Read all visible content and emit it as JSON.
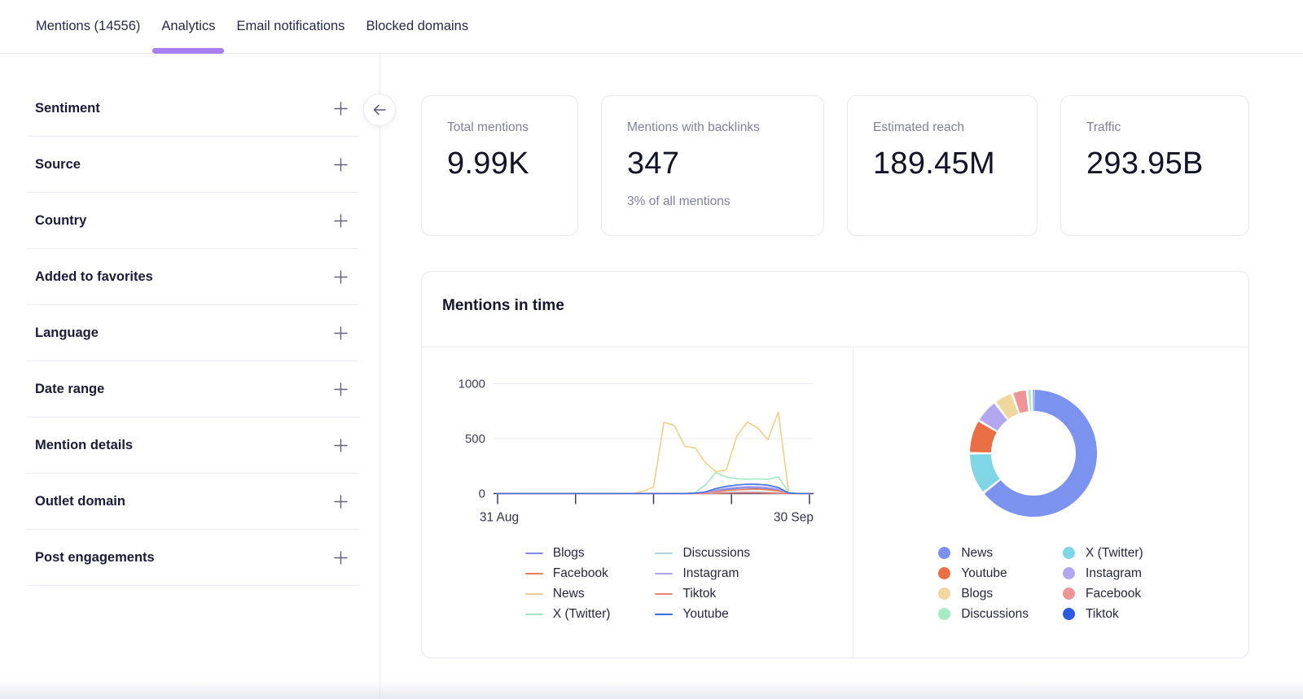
{
  "tabs": {
    "items": [
      {
        "label": "Mentions (14556)",
        "active": false
      },
      {
        "label": "Analytics",
        "active": true
      },
      {
        "label": "Email notifications",
        "active": false
      },
      {
        "label": "Blocked domains",
        "active": false
      }
    ]
  },
  "sidebar": {
    "items": [
      {
        "label": "Sentiment"
      },
      {
        "label": "Source"
      },
      {
        "label": "Country"
      },
      {
        "label": "Added to favorites"
      },
      {
        "label": "Language"
      },
      {
        "label": "Date range"
      },
      {
        "label": "Mention details"
      },
      {
        "label": "Outlet domain"
      },
      {
        "label": "Post engagements"
      }
    ],
    "expand_icon": "plus-icon"
  },
  "collapse_button": {
    "icon": "arrow-left-icon"
  },
  "stats": {
    "cards": [
      {
        "label": "Total mentions",
        "value": "9.99K",
        "sublabel": ""
      },
      {
        "label": "Mentions with backlinks",
        "value": "347",
        "sublabel": "3% of all mentions"
      },
      {
        "label": "Estimated reach",
        "value": "189.45M",
        "sublabel": ""
      },
      {
        "label": "Traffic",
        "value": "293.95B",
        "sublabel": ""
      }
    ]
  },
  "mentions_panel": {
    "title": "Mentions in time"
  },
  "colors": {
    "accent_purple": "#a77ef2",
    "divider": "#ececf4",
    "card_border": "#e7e7f0",
    "text_dark": "#15152d",
    "text_gray": "#80809b",
    "axis_text": "#3e3e58"
  },
  "chart_data": [
    {
      "type": "line",
      "title": "Mentions in time",
      "xlabel": "",
      "ylabel": "",
      "ylim": [
        0,
        1000
      ],
      "yticks": [
        0,
        500,
        1000
      ],
      "x_start_label": "31 Aug",
      "x_end_label": "30 Sep",
      "x_tick_count": 5,
      "x_days": 31,
      "grid": true,
      "legend_position": "bottom",
      "series": [
        {
          "name": "Blogs",
          "color": "#7a88e8",
          "values": [
            0,
            0,
            0,
            0,
            0,
            0,
            0,
            0,
            0,
            0,
            0,
            0,
            0,
            0,
            0,
            0,
            0,
            0,
            0,
            2,
            8,
            25,
            38,
            46,
            52,
            50,
            45,
            33,
            3,
            0,
            0
          ]
        },
        {
          "name": "Facebook",
          "color": "#ec7b52",
          "values": [
            0,
            0,
            0,
            0,
            0,
            0,
            0,
            0,
            0,
            0,
            0,
            0,
            0,
            0,
            0,
            0,
            0,
            0,
            0,
            1,
            6,
            16,
            26,
            33,
            38,
            40,
            34,
            24,
            2,
            0,
            0
          ]
        },
        {
          "name": "News",
          "color": "#f2cf87",
          "values": [
            0,
            0,
            0,
            0,
            0,
            0,
            0,
            0,
            0,
            0,
            0,
            0,
            0,
            0,
            20,
            60,
            650,
            620,
            430,
            415,
            280,
            200,
            215,
            520,
            650,
            600,
            490,
            740,
            10,
            0,
            0
          ]
        },
        {
          "name": "X (Twitter)",
          "color": "#a3e8c5",
          "values": [
            0,
            0,
            0,
            0,
            0,
            0,
            0,
            0,
            0,
            0,
            0,
            0,
            0,
            0,
            0,
            0,
            0,
            0,
            0,
            10,
            80,
            190,
            150,
            135,
            130,
            133,
            128,
            152,
            8,
            0,
            0
          ]
        },
        {
          "name": "Discussions",
          "color": "#a8d8f0",
          "values": [
            0,
            0,
            0,
            0,
            0,
            0,
            0,
            0,
            0,
            0,
            0,
            0,
            0,
            0,
            0,
            0,
            0,
            0,
            0,
            1,
            3,
            7,
            10,
            13,
            15,
            14,
            11,
            7,
            1,
            0,
            0
          ]
        },
        {
          "name": "Instagram",
          "color": "#aba3ee",
          "values": [
            0,
            0,
            0,
            0,
            0,
            0,
            0,
            0,
            0,
            0,
            0,
            0,
            0,
            0,
            0,
            0,
            0,
            0,
            0,
            2,
            10,
            32,
            48,
            58,
            64,
            62,
            55,
            40,
            4,
            0,
            0
          ]
        },
        {
          "name": "Tiktok",
          "color": "#f0807a",
          "values": [
            0,
            0,
            0,
            0,
            0,
            0,
            0,
            0,
            0,
            0,
            0,
            0,
            0,
            0,
            0,
            0,
            0,
            0,
            0,
            0,
            1,
            3,
            5,
            7,
            8,
            7,
            5,
            3,
            1,
            0,
            0
          ]
        },
        {
          "name": "Youtube",
          "color": "#3a6be0",
          "values": [
            0,
            0,
            0,
            0,
            0,
            0,
            0,
            0,
            0,
            0,
            0,
            0,
            0,
            0,
            0,
            0,
            0,
            0,
            0,
            3,
            15,
            45,
            65,
            78,
            85,
            84,
            76,
            55,
            5,
            0,
            0
          ]
        }
      ],
      "legend_columns": [
        [
          "Blogs",
          "Facebook",
          "News",
          "X (Twitter)"
        ],
        [
          "Discussions",
          "Instagram",
          "Tiktok",
          "Youtube"
        ]
      ]
    },
    {
      "type": "pie",
      "donut": true,
      "unit": "percent (estimated from arc angles)",
      "slices": [
        {
          "label": "News",
          "color": "#7b93ee",
          "value": 63.5
        },
        {
          "label": "X (Twitter)",
          "color": "#7fd6e4",
          "value": 10.5
        },
        {
          "label": "Youtube",
          "color": "#ea6f44",
          "value": 8.5
        },
        {
          "label": "Instagram",
          "color": "#b3a7f0",
          "value": 6.0
        },
        {
          "label": "Blogs",
          "color": "#f0d79e",
          "value": 4.8
        },
        {
          "label": "Facebook",
          "color": "#ee9697",
          "value": 3.8
        },
        {
          "label": "Discussions",
          "color": "#a5ecc5",
          "value": 1.2
        },
        {
          "label": "Tiktok",
          "color": "#2e5ce0",
          "value": 0.4
        }
      ],
      "legend_columns": [
        [
          "News",
          "Youtube",
          "Blogs",
          "Discussions"
        ],
        [
          "X (Twitter)",
          "Instagram",
          "Facebook",
          "Tiktok"
        ]
      ],
      "legend_position": "bottom"
    }
  ]
}
